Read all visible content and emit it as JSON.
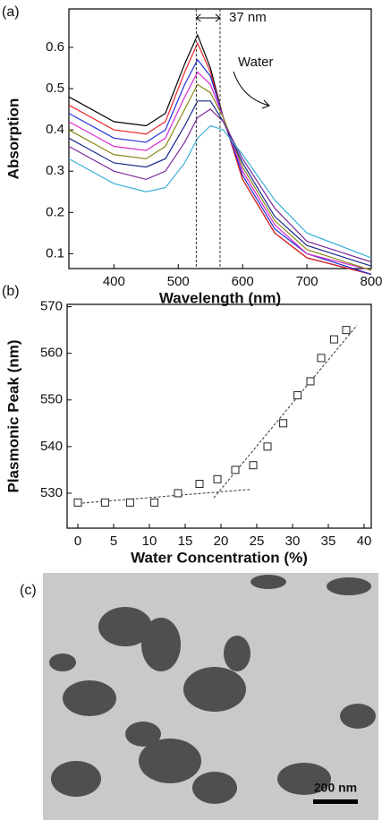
{
  "chart_data": [
    {
      "type": "line",
      "panel_label": "(a)",
      "x_label": "Wavelength (nm)",
      "y_label": "Absorption",
      "x": [
        330,
        400,
        450,
        480,
        510,
        530,
        550,
        570,
        600,
        650,
        700,
        800
      ],
      "series": [
        {
          "color": "#000000",
          "values": [
            0.48,
            0.42,
            0.41,
            0.44,
            0.56,
            0.63,
            0.55,
            0.43,
            0.28,
            0.15,
            0.09,
            0.05
          ]
        },
        {
          "color": "#e8262a",
          "values": [
            0.46,
            0.4,
            0.39,
            0.42,
            0.54,
            0.61,
            0.54,
            0.43,
            0.28,
            0.15,
            0.09,
            0.05
          ]
        },
        {
          "color": "#2332d8",
          "values": [
            0.44,
            0.38,
            0.37,
            0.4,
            0.51,
            0.57,
            0.53,
            0.43,
            0.29,
            0.16,
            0.1,
            0.05
          ]
        },
        {
          "color": "#d82bd2",
          "values": [
            0.42,
            0.36,
            0.35,
            0.38,
            0.48,
            0.54,
            0.51,
            0.43,
            0.3,
            0.17,
            0.1,
            0.06
          ]
        },
        {
          "color": "#8a8a1a",
          "values": [
            0.4,
            0.34,
            0.33,
            0.36,
            0.45,
            0.51,
            0.49,
            0.43,
            0.31,
            0.18,
            0.11,
            0.06
          ]
        },
        {
          "color": "#1a2a8a",
          "values": [
            0.38,
            0.32,
            0.31,
            0.33,
            0.41,
            0.47,
            0.47,
            0.42,
            0.32,
            0.19,
            0.12,
            0.07
          ]
        },
        {
          "color": "#7a2a9a",
          "values": [
            0.36,
            0.3,
            0.28,
            0.3,
            0.37,
            0.43,
            0.45,
            0.42,
            0.33,
            0.21,
            0.13,
            0.08
          ]
        },
        {
          "color": "#3ab0d8",
          "values": [
            0.33,
            0.27,
            0.25,
            0.26,
            0.32,
            0.38,
            0.41,
            0.4,
            0.34,
            0.23,
            0.15,
            0.09
          ]
        }
      ],
      "xlim": [
        330,
        800
      ],
      "ylim": [
        0.064,
        0.693
      ],
      "xticks": [
        400,
        500,
        600,
        700,
        800
      ],
      "yticks": [
        0.1,
        0.2,
        0.3,
        0.4,
        0.5,
        0.6
      ],
      "markers": [
        528,
        565
      ],
      "gap_label": "37 nm",
      "arrow_label": "Water"
    },
    {
      "type": "scatter",
      "panel_label": "(b)",
      "x_label": "Water Concentration (%)",
      "y_label": "Plasmonic Peak (nm)",
      "x": [
        0,
        3.8,
        7.3,
        10.7,
        14,
        17,
        19.5,
        22,
        24.5,
        26.5,
        28.7,
        30.7,
        32.5,
        34,
        35.8,
        37.5
      ],
      "values": [
        528,
        528,
        528,
        528,
        530,
        532,
        533,
        535,
        536,
        540,
        545,
        551,
        554,
        559,
        563,
        565
      ],
      "fit_lines": [
        {
          "x": [
            0,
            24
          ],
          "values": [
            527.8,
            530.8
          ]
        },
        {
          "x": [
            19,
            39
          ],
          "values": [
            529,
            566
          ]
        }
      ],
      "xlim": [
        -1.5,
        41
      ],
      "ylim": [
        522.5,
        570.5
      ],
      "xticks": [
        0,
        5,
        10,
        15,
        20,
        25,
        30,
        35,
        40
      ],
      "yticks": [
        530,
        540,
        550,
        560,
        570
      ]
    }
  ],
  "image_panel": {
    "label": "(c)",
    "scale_bar": "200 nm"
  }
}
